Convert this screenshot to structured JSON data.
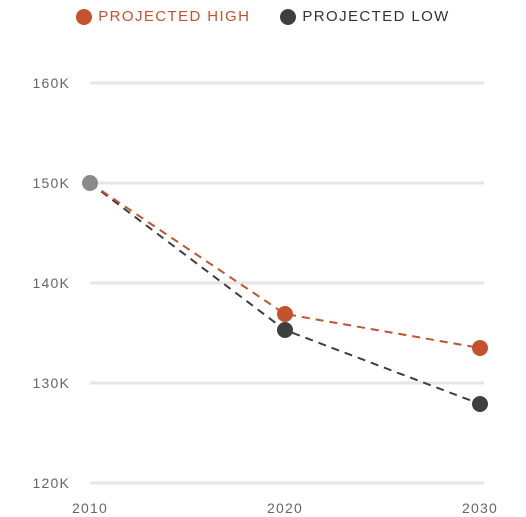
{
  "chart_data": {
    "type": "line",
    "categories": [
      "2010",
      "2020",
      "2030"
    ],
    "x": [
      2010,
      2020,
      2030
    ],
    "y_ticks": [
      "120K",
      "130K",
      "140K",
      "150K",
      "160K"
    ],
    "ylim": [
      120000,
      160000
    ],
    "legend_position": "top-center",
    "grid": true,
    "series": [
      {
        "name": "PROJECTED HIGH",
        "values": [
          150000,
          136900,
          133500
        ],
        "color": "#c4532d",
        "line_style": "dashed"
      },
      {
        "name": "PROJECTED LOW",
        "values": [
          150000,
          135300,
          127900
        ],
        "color": "#3f3f3f",
        "line_style": "dashed"
      }
    ],
    "shared_start_color": "#8a8a8a"
  }
}
